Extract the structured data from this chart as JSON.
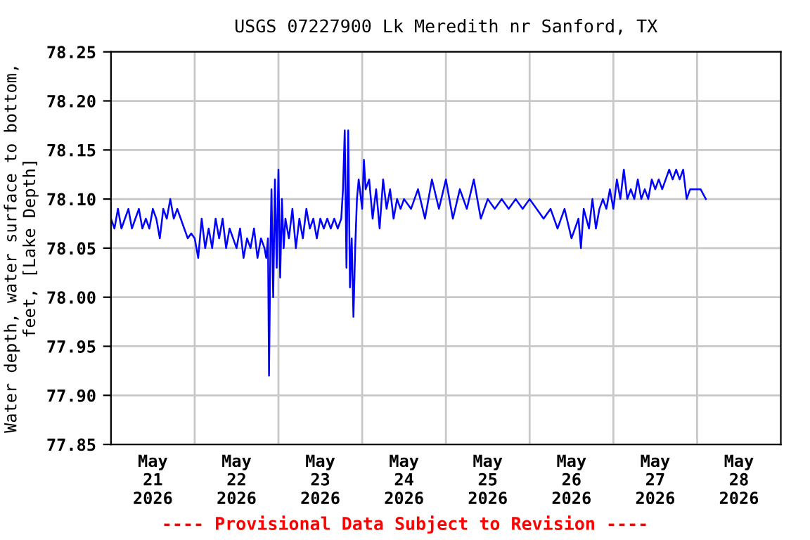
{
  "chart_data": {
    "type": "line",
    "title": "USGS 07227900 Lk Meredith nr Sanford, TX",
    "ylabel": "Water depth, water surface to bottom,\nfeet, [Lake Depth]",
    "annotations": [
      "---- Provisional Data Subject to Revision ----"
    ],
    "grid": true,
    "legend": false,
    "xlim": [
      "2026-05-21T00:00",
      "2026-05-29T00:00"
    ],
    "xticks": [
      {
        "value": "2026-05-21T00:00",
        "label": null
      },
      {
        "value": "2026-05-22T00:00",
        "label": null
      },
      {
        "value": "2026-05-23T00:00",
        "label": null
      },
      {
        "value": "2026-05-24T00:00",
        "label": null
      },
      {
        "value": "2026-05-25T00:00",
        "label": null
      },
      {
        "value": "2026-05-26T00:00",
        "label": null
      },
      {
        "value": "2026-05-27T00:00",
        "label": null
      },
      {
        "value": "2026-05-28T00:00",
        "label": null
      },
      {
        "value": "2026-05-21T12:00",
        "label": "May\n21\n2026"
      },
      {
        "value": "2026-05-22T12:00",
        "label": "May\n22\n2026"
      },
      {
        "value": "2026-05-23T12:00",
        "label": "May\n23\n2026"
      },
      {
        "value": "2026-05-24T12:00",
        "label": "May\n24\n2026"
      },
      {
        "value": "2026-05-25T12:00",
        "label": "May\n25\n2026"
      },
      {
        "value": "2026-05-26T12:00",
        "label": "May\n26\n2026"
      },
      {
        "value": "2026-05-27T12:00",
        "label": "May\n27\n2026"
      },
      {
        "value": "2026-05-28T12:00",
        "label": "May\n28\n2026"
      }
    ],
    "ylim": [
      77.85,
      78.25
    ],
    "yticks": [
      {
        "value": 77.85,
        "label": "77.85"
      },
      {
        "value": 77.9,
        "label": "77.90"
      },
      {
        "value": 77.95,
        "label": "77.95"
      },
      {
        "value": 78.0,
        "label": "78.00"
      },
      {
        "value": 78.05,
        "label": "78.05"
      },
      {
        "value": 78.1,
        "label": "78.10"
      },
      {
        "value": 78.15,
        "label": "78.15"
      },
      {
        "value": 78.2,
        "label": "78.20"
      },
      {
        "value": 78.25,
        "label": "78.25"
      }
    ],
    "series": [
      {
        "color": "#0000ff",
        "x": [
          "2026-05-21T00:00",
          "2026-05-21T01:00",
          "2026-05-21T02:00",
          "2026-05-21T03:00",
          "2026-05-21T04:00",
          "2026-05-21T05:00",
          "2026-05-21T06:00",
          "2026-05-21T07:00",
          "2026-05-21T08:00",
          "2026-05-21T09:00",
          "2026-05-21T10:00",
          "2026-05-21T11:00",
          "2026-05-21T12:00",
          "2026-05-21T13:00",
          "2026-05-21T14:00",
          "2026-05-21T15:00",
          "2026-05-21T16:00",
          "2026-05-21T17:00",
          "2026-05-21T18:00",
          "2026-05-21T19:00",
          "2026-05-21T20:00",
          "2026-05-21T21:00",
          "2026-05-21T22:00",
          "2026-05-21T23:00",
          "2026-05-22T00:00",
          "2026-05-22T01:00",
          "2026-05-22T02:00",
          "2026-05-22T03:00",
          "2026-05-22T04:00",
          "2026-05-22T05:00",
          "2026-05-22T06:00",
          "2026-05-22T07:00",
          "2026-05-22T08:00",
          "2026-05-22T09:00",
          "2026-05-22T10:00",
          "2026-05-22T11:00",
          "2026-05-22T12:00",
          "2026-05-22T13:00",
          "2026-05-22T14:00",
          "2026-05-22T15:00",
          "2026-05-22T16:00",
          "2026-05-22T17:00",
          "2026-05-22T18:00",
          "2026-05-22T19:00",
          "2026-05-22T20:00",
          "2026-05-22T20:30",
          "2026-05-22T21:00",
          "2026-05-22T21:18",
          "2026-05-22T21:42",
          "2026-05-22T22:00",
          "2026-05-22T22:30",
          "2026-05-22T23:00",
          "2026-05-22T23:30",
          "2026-05-23T00:00",
          "2026-05-23T00:30",
          "2026-05-23T01:00",
          "2026-05-23T01:30",
          "2026-05-23T02:00",
          "2026-05-23T03:00",
          "2026-05-23T04:00",
          "2026-05-23T05:00",
          "2026-05-23T06:00",
          "2026-05-23T07:00",
          "2026-05-23T08:00",
          "2026-05-23T09:00",
          "2026-05-23T10:00",
          "2026-05-23T11:00",
          "2026-05-23T12:00",
          "2026-05-23T13:00",
          "2026-05-23T14:00",
          "2026-05-23T15:00",
          "2026-05-23T16:00",
          "2026-05-23T17:00",
          "2026-05-23T18:00",
          "2026-05-23T18:30",
          "2026-05-23T19:00",
          "2026-05-23T19:30",
          "2026-05-23T20:00",
          "2026-05-23T20:30",
          "2026-05-23T21:00",
          "2026-05-23T21:30",
          "2026-05-23T22:00",
          "2026-05-23T22:30",
          "2026-05-23T23:00",
          "2026-05-24T00:00",
          "2026-05-24T00:30",
          "2026-05-24T01:00",
          "2026-05-24T02:00",
          "2026-05-24T03:00",
          "2026-05-24T04:00",
          "2026-05-24T05:00",
          "2026-05-24T06:00",
          "2026-05-24T07:00",
          "2026-05-24T08:00",
          "2026-05-24T09:00",
          "2026-05-24T10:00",
          "2026-05-24T11:00",
          "2026-05-24T12:00",
          "2026-05-24T14:00",
          "2026-05-24T16:00",
          "2026-05-24T18:00",
          "2026-05-24T20:00",
          "2026-05-24T22:00",
          "2026-05-25T00:00",
          "2026-05-25T02:00",
          "2026-05-25T04:00",
          "2026-05-25T06:00",
          "2026-05-25T08:00",
          "2026-05-25T10:00",
          "2026-05-25T12:00",
          "2026-05-25T14:00",
          "2026-05-25T16:00",
          "2026-05-25T18:00",
          "2026-05-25T20:00",
          "2026-05-25T22:00",
          "2026-05-26T00:00",
          "2026-05-26T02:00",
          "2026-05-26T04:00",
          "2026-05-26T06:00",
          "2026-05-26T08:00",
          "2026-05-26T10:00",
          "2026-05-26T12:00",
          "2026-05-26T14:00",
          "2026-05-26T14:42",
          "2026-05-26T15:30",
          "2026-05-26T17:00",
          "2026-05-26T18:00",
          "2026-05-26T19:00",
          "2026-05-26T20:00",
          "2026-05-26T21:00",
          "2026-05-26T22:00",
          "2026-05-26T23:00",
          "2026-05-27T00:00",
          "2026-05-27T01:00",
          "2026-05-27T02:00",
          "2026-05-27T03:00",
          "2026-05-27T04:00",
          "2026-05-27T05:00",
          "2026-05-27T06:00",
          "2026-05-27T07:00",
          "2026-05-27T08:00",
          "2026-05-27T09:00",
          "2026-05-27T10:00",
          "2026-05-27T11:00",
          "2026-05-27T12:00",
          "2026-05-27T13:00",
          "2026-05-27T14:00",
          "2026-05-27T15:00",
          "2026-05-27T16:00",
          "2026-05-27T17:00",
          "2026-05-27T18:00",
          "2026-05-27T19:00",
          "2026-05-27T20:00",
          "2026-05-27T21:00",
          "2026-05-27T22:00",
          "2026-05-27T23:00",
          "2026-05-28T00:00",
          "2026-05-28T01:00",
          "2026-05-28T02:30"
        ],
        "values": [
          78.08,
          78.07,
          78.09,
          78.07,
          78.08,
          78.09,
          78.07,
          78.08,
          78.09,
          78.07,
          78.08,
          78.07,
          78.09,
          78.08,
          78.06,
          78.09,
          78.08,
          78.1,
          78.08,
          78.09,
          78.08,
          78.07,
          78.06,
          78.065,
          78.06,
          78.04,
          78.08,
          78.05,
          78.07,
          78.05,
          78.08,
          78.06,
          78.08,
          78.05,
          78.07,
          78.06,
          78.05,
          78.07,
          78.04,
          78.06,
          78.05,
          78.07,
          78.04,
          78.06,
          78.05,
          78.04,
          78.06,
          77.92,
          78.05,
          78.11,
          78.0,
          78.12,
          78.03,
          78.13,
          78.02,
          78.1,
          78.05,
          78.08,
          78.06,
          78.09,
          78.05,
          78.08,
          78.06,
          78.09,
          78.07,
          78.08,
          78.06,
          78.08,
          78.07,
          78.08,
          78.07,
          78.08,
          78.07,
          78.08,
          78.11,
          78.17,
          78.03,
          78.17,
          78.01,
          78.06,
          77.98,
          78.05,
          78.1,
          78.12,
          78.09,
          78.14,
          78.11,
          78.12,
          78.08,
          78.11,
          78.07,
          78.12,
          78.09,
          78.11,
          78.08,
          78.1,
          78.09,
          78.1,
          78.09,
          78.11,
          78.08,
          78.12,
          78.09,
          78.12,
          78.08,
          78.11,
          78.09,
          78.12,
          78.08,
          78.1,
          78.09,
          78.1,
          78.09,
          78.1,
          78.09,
          78.1,
          78.09,
          78.08,
          78.09,
          78.07,
          78.09,
          78.06,
          78.08,
          78.05,
          78.09,
          78.07,
          78.1,
          78.07,
          78.09,
          78.1,
          78.09,
          78.11,
          78.09,
          78.12,
          78.1,
          78.13,
          78.1,
          78.11,
          78.1,
          78.12,
          78.1,
          78.11,
          78.1,
          78.12,
          78.11,
          78.12,
          78.11,
          78.12,
          78.13,
          78.12,
          78.13,
          78.12,
          78.13,
          78.1,
          78.11,
          78.11,
          78.11,
          78.11,
          78.1
        ]
      }
    ]
  }
}
